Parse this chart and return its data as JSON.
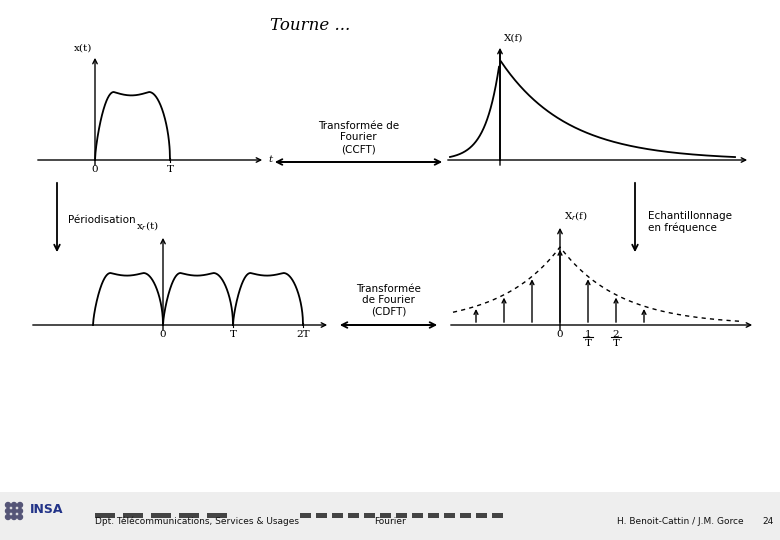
{
  "title": "Tourne ...",
  "bg_color": "#ffffff",
  "text_color": "#000000",
  "footer_left": "Dpt. Télécommunications, Services & Usages",
  "footer_center": "Fourier",
  "footer_right": "H. Benoit-Cattin / J.M. Gorce",
  "footer_page": "24",
  "ccft_label": "Transformée de\nFourier\n(CCFT)",
  "cdft_label": "Transformée\nde Fourier\n(CDFT)",
  "periodisation_label": "Périodisation",
  "echantillonnage_label": "Echantillonnage\nen fréquence"
}
